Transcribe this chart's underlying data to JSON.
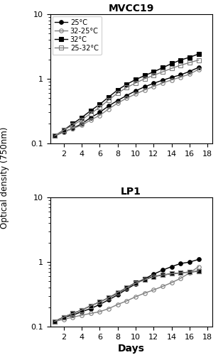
{
  "days": [
    1,
    2,
    3,
    4,
    5,
    6,
    7,
    8,
    9,
    10,
    11,
    12,
    13,
    14,
    15,
    16,
    17
  ],
  "MVCC19": {
    "25C": [
      0.13,
      0.15,
      0.17,
      0.2,
      0.25,
      0.3,
      0.38,
      0.46,
      0.55,
      0.65,
      0.75,
      0.85,
      0.95,
      1.05,
      1.15,
      1.3,
      1.5
    ],
    "32_25C": [
      0.13,
      0.15,
      0.17,
      0.19,
      0.23,
      0.27,
      0.34,
      0.42,
      0.5,
      0.58,
      0.67,
      0.76,
      0.86,
      0.96,
      1.06,
      1.18,
      1.4
    ],
    "32C": [
      0.13,
      0.16,
      0.2,
      0.25,
      0.32,
      0.4,
      0.52,
      0.67,
      0.82,
      0.97,
      1.12,
      1.28,
      1.48,
      1.72,
      1.95,
      2.15,
      2.42
    ],
    "25_32C": [
      0.13,
      0.16,
      0.19,
      0.23,
      0.29,
      0.36,
      0.47,
      0.6,
      0.73,
      0.86,
      1.0,
      1.13,
      1.28,
      1.45,
      1.62,
      1.78,
      1.95
    ]
  },
  "LP1": {
    "25C": [
      0.12,
      0.14,
      0.15,
      0.17,
      0.19,
      0.22,
      0.26,
      0.31,
      0.38,
      0.46,
      0.55,
      0.65,
      0.75,
      0.85,
      0.95,
      1.0,
      1.1
    ],
    "32_25C": [
      0.12,
      0.13,
      0.14,
      0.15,
      0.16,
      0.17,
      0.19,
      0.22,
      0.25,
      0.29,
      0.33,
      0.37,
      0.42,
      0.48,
      0.56,
      0.68,
      0.85
    ],
    "32C": [
      0.12,
      0.14,
      0.16,
      0.18,
      0.21,
      0.24,
      0.28,
      0.33,
      0.4,
      0.48,
      0.54,
      0.6,
      0.63,
      0.66,
      0.68,
      0.7,
      0.72
    ],
    "25_32C": [
      0.12,
      0.14,
      0.16,
      0.18,
      0.21,
      0.24,
      0.28,
      0.34,
      0.4,
      0.47,
      0.53,
      0.59,
      0.63,
      0.66,
      0.68,
      0.7,
      0.73
    ]
  },
  "legend_labels": [
    "25°C",
    "32-25°C",
    "32°C",
    "25-32°C"
  ],
  "series_styles": [
    {
      "color": "#000000",
      "marker": "o",
      "fillstyle": "full",
      "linestyle": "-"
    },
    {
      "color": "#808080",
      "marker": "o",
      "fillstyle": "none",
      "linestyle": "-"
    },
    {
      "color": "#000000",
      "marker": "s",
      "fillstyle": "full",
      "linestyle": "-"
    },
    {
      "color": "#808080",
      "marker": "s",
      "fillstyle": "none",
      "linestyle": "-"
    }
  ],
  "title1": "MVCC19",
  "title2": "LP1",
  "ylabel": "Optical density (750nm)",
  "xlabel": "Days",
  "ylim": [
    0.1,
    10
  ],
  "xlim": [
    0.5,
    18.5
  ],
  "xticks": [
    2,
    4,
    6,
    8,
    10,
    12,
    14,
    16,
    18
  ],
  "markersize": 4,
  "linewidth": 1.0
}
